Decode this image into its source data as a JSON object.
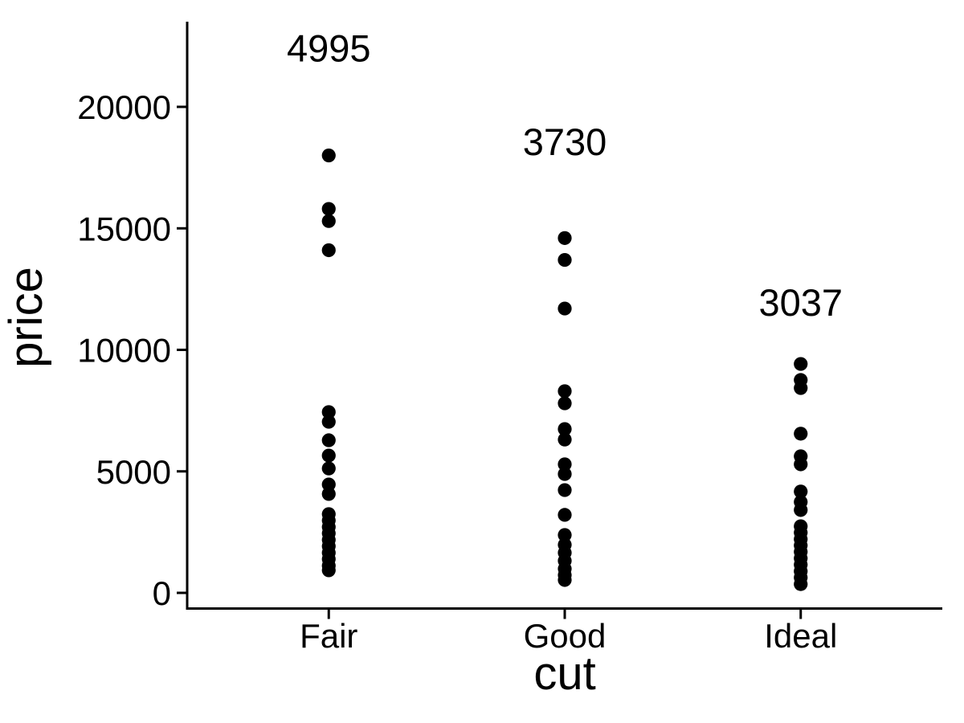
{
  "figure": {
    "background": "#FFFFFF",
    "foreground": "#000000",
    "point_color": "#000000"
  },
  "chart_data": {
    "type": "scatter",
    "subtype": "strip-plot",
    "title": "",
    "xlabel": "cut",
    "ylabel": "price",
    "categories": [
      "Fair",
      "Good",
      "Ideal"
    ],
    "y_ticks": [
      0,
      5000,
      10000,
      15000,
      20000
    ],
    "y_tick_labels": [
      "0",
      "5000",
      "10000",
      "15000",
      "20000"
    ],
    "ylim": [
      0,
      23500
    ],
    "grid": false,
    "legend": false,
    "annotations": [
      {
        "category": "Fair",
        "label": "4995",
        "y_price": 22400
      },
      {
        "category": "Good",
        "label": "3730",
        "y_price": 18550
      },
      {
        "category": "Ideal",
        "label": "3037",
        "y_price": 11930
      }
    ],
    "series": [
      {
        "name": "Fair",
        "mean_label": "4995",
        "prices": [
          18000,
          15800,
          15300,
          14100,
          7440,
          7040,
          6280,
          5650,
          5120,
          4460,
          4070,
          3240,
          2980,
          2710,
          2450,
          2180,
          1920,
          1650,
          1390,
          1120,
          930
        ]
      },
      {
        "name": "Good",
        "mean_label": "3730",
        "prices": [
          14600,
          13700,
          11700,
          8300,
          7800,
          6740,
          6310,
          5290,
          4890,
          4230,
          3210,
          2380,
          1980,
          1650,
          1320,
          990,
          730,
          530
        ]
      },
      {
        "name": "Ideal",
        "mean_label": "3037",
        "prices": [
          9420,
          8760,
          8430,
          6550,
          5620,
          5290,
          4170,
          3740,
          3410,
          2740,
          2480,
          2210,
          1950,
          1690,
          1420,
          1160,
          890,
          630,
          360
        ]
      }
    ]
  }
}
